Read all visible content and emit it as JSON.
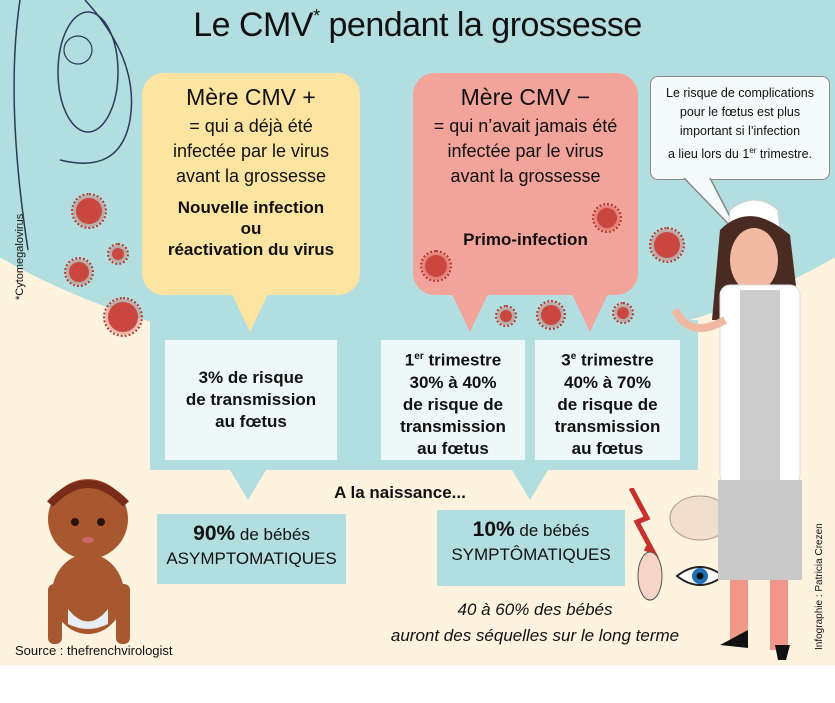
{
  "title": {
    "main": "Le CMV",
    "asterisk": "*",
    "rest": " pendant la grossesse"
  },
  "footnote": "*Cytomegalovirus",
  "credit": "Infographie : Patricia Crezen",
  "source": "Source : thefrenchvirologist",
  "mere_plus": {
    "heading": "Mère CMV +",
    "lines": [
      "= qui a déjà été",
      "infectée par le virus",
      "avant la grossesse"
    ],
    "type": [
      "Nouvelle infection",
      "ou",
      "réactivation du virus"
    ]
  },
  "mere_moins": {
    "heading": "Mère CMV −",
    "lines": [
      "= qui n’avait jamais été",
      "infectée par le virus",
      "avant la grossesse"
    ],
    "type": "Primo-infection"
  },
  "speech": {
    "lines": [
      "Le risque de complications",
      "pour le fœtus est plus",
      "important si l’infection"
    ],
    "last_pre": "a lieu lors du 1",
    "last_sup": "er",
    "last_post": " trimestre."
  },
  "risk": {
    "plus": [
      "3% de risque",
      "de transmission",
      "au fœtus"
    ],
    "t1": {
      "num": "1",
      "sup": "er",
      "label": " trimestre",
      "lines": [
        "30% à 40%",
        "de risque de",
        "transmission",
        "au fœtus"
      ]
    },
    "t3": {
      "num": "3",
      "sup": "e",
      "label": " trimestre",
      "lines": [
        "40% à 70%",
        "de risque de",
        "transmission",
        "au fœtus"
      ]
    }
  },
  "naissance": "A la naissance...",
  "asympt": {
    "pct": "90%",
    "text": " de bébés",
    "label": "ASYMPTOMATIQUES"
  },
  "sympt": {
    "pct": "10%",
    "text": " de bébés",
    "label": "SYMPTÔMATIQUES"
  },
  "sequelles": [
    "40 à 60% des bébés",
    "auront des séquelles sur le long terme"
  ],
  "colors": {
    "teal": "#b2dedf",
    "cream": "#fdf3df",
    "yellow": "#fde4a1",
    "red": "#f2a39a",
    "virus": "#c9473e"
  }
}
